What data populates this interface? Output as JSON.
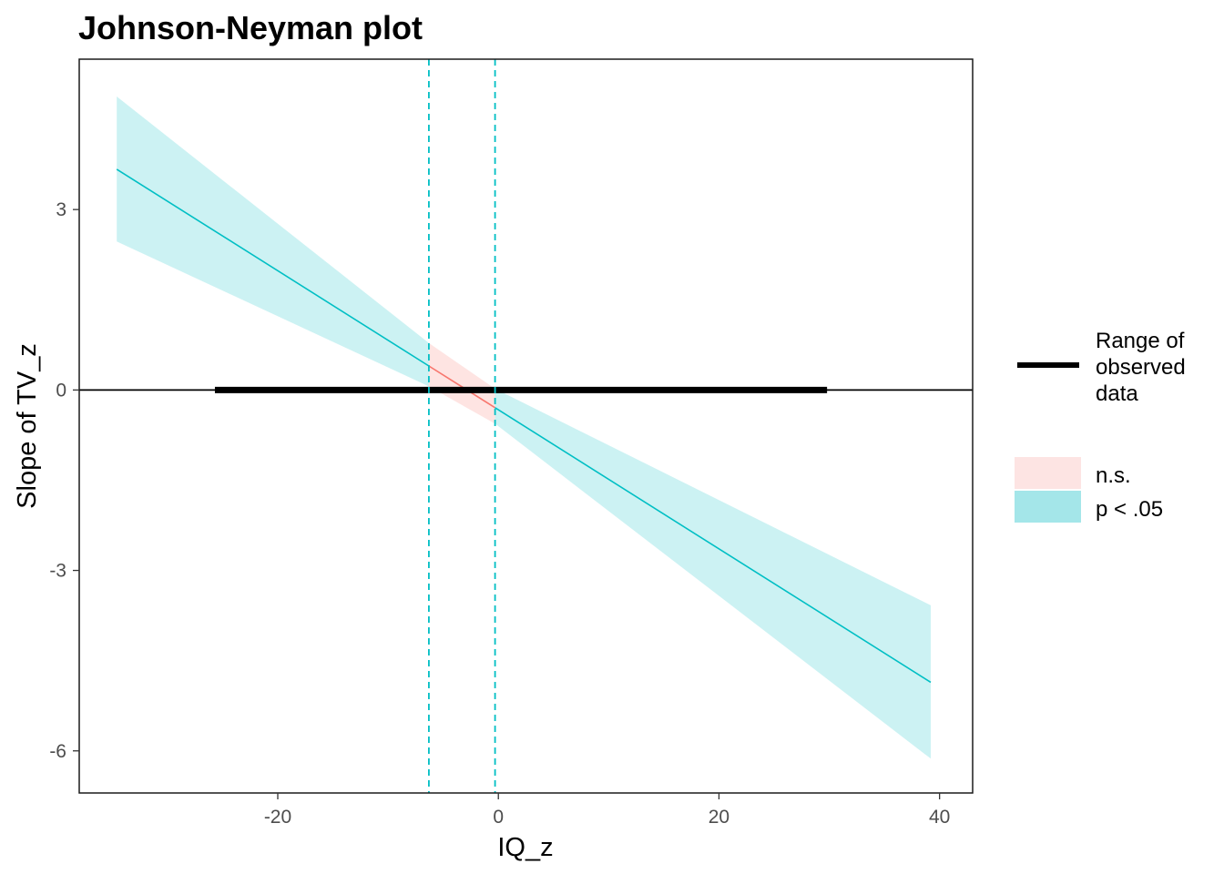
{
  "chart_data": {
    "type": "line",
    "title": "Johnson-Neyman plot",
    "xlabel": "IQ_z",
    "ylabel": "Slope of TV_z",
    "xlim": [
      -38,
      43
    ],
    "ylim": [
      -6.7,
      5.5
    ],
    "x_ticks": [
      {
        "value": -20,
        "label": "-20"
      },
      {
        "value": 0,
        "label": "0"
      },
      {
        "value": 20,
        "label": "20"
      },
      {
        "value": 40,
        "label": "40"
      }
    ],
    "y_ticks": [
      {
        "value": 3,
        "label": "3"
      },
      {
        "value": 0,
        "label": "0"
      },
      {
        "value": -3,
        "label": "-3"
      },
      {
        "value": -6,
        "label": "-6"
      }
    ],
    "slope_line": {
      "x": [
        -34.6,
        39.2
      ],
      "y": [
        3.67,
        -4.86
      ]
    },
    "ci_band": {
      "x": [
        -34.6,
        -6.3,
        -0.3,
        39.2
      ],
      "lower": [
        2.47,
        0.06,
        -0.56,
        -6.13
      ],
      "upper": [
        4.88,
        0.78,
        0.02,
        -3.58
      ]
    },
    "jn_boundaries": [
      -6.3,
      -0.3
    ],
    "regions": [
      {
        "label": "p < .05",
        "x_range": [
          -34.6,
          -6.3
        ],
        "color": "#00bfc4",
        "fill": "#a4e6e9"
      },
      {
        "label": "n.s.",
        "x_range": [
          -6.3,
          -0.3
        ],
        "color": "#f8766d",
        "fill": "#fde4e3"
      },
      {
        "label": "p < .05",
        "x_range": [
          -0.3,
          39.2
        ],
        "color": "#00bfc4",
        "fill": "#a4e6e9"
      }
    ],
    "observed_range": [
      -25.7,
      29.8
    ],
    "zero_line": 0,
    "legend": {
      "position": "right",
      "range_label_lines": [
        "Range of",
        "observed",
        "data"
      ],
      "items": [
        {
          "label": "n.s.",
          "fill": "#fde4e3"
        },
        {
          "label": "p < .05",
          "fill": "#a4e6e9"
        }
      ]
    },
    "grid": false
  }
}
